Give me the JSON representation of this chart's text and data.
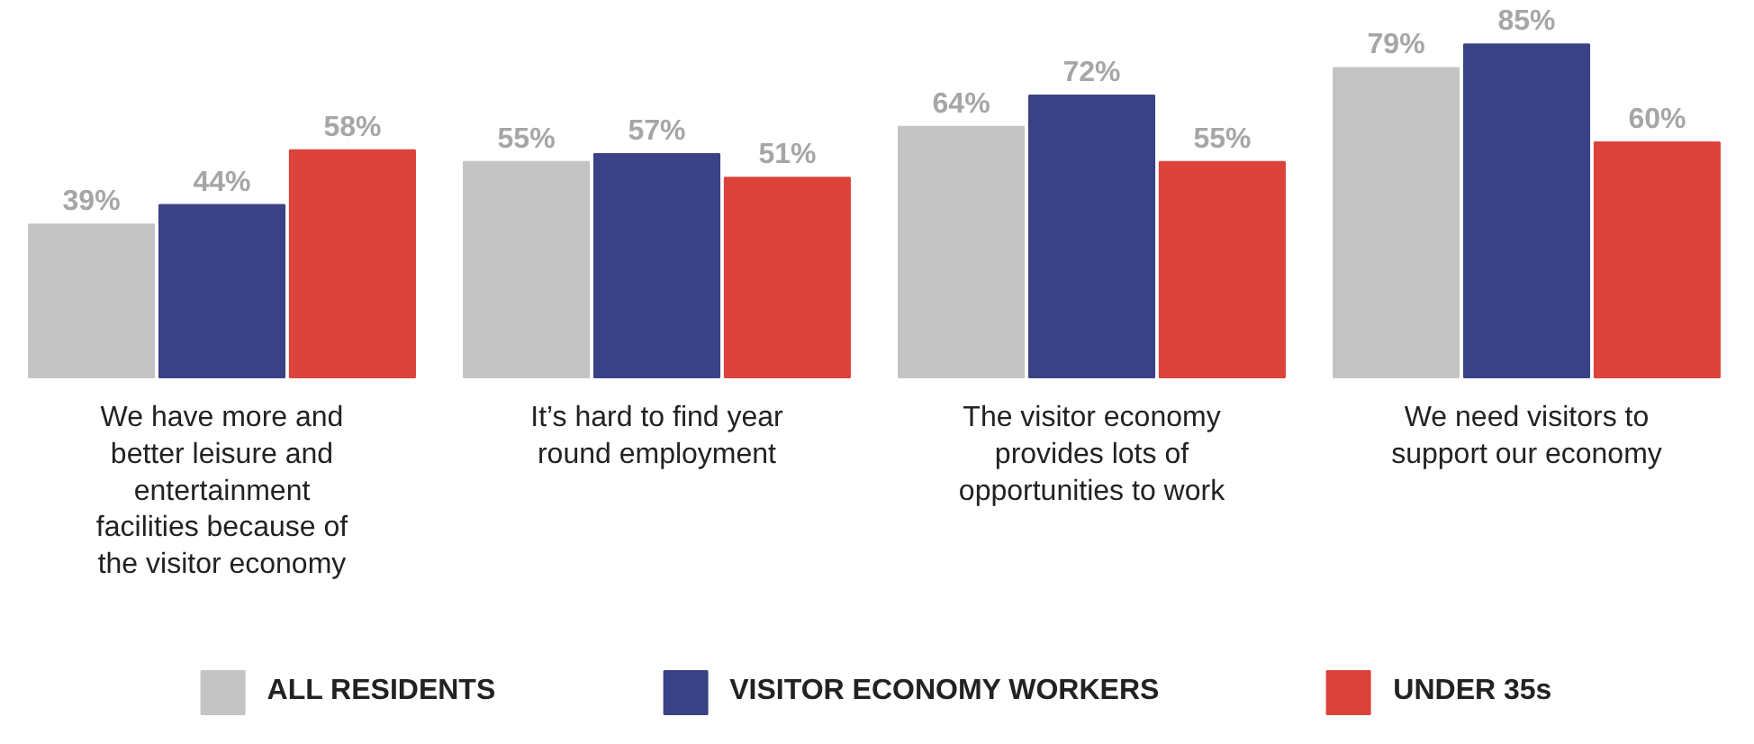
{
  "chart_data": {
    "type": "bar",
    "categories": [
      "We have more and better leisure and entertainment facilities because of the visitor economy",
      "It’s hard to find year round employment",
      "The visitor economy provides lots of opportunities to work",
      "We need visitors to support our economy"
    ],
    "series": [
      {
        "name": "ALL RESIDENTS",
        "color": "#c4c4c4",
        "values": [
          39,
          55,
          64,
          79
        ],
        "value_labels": [
          "39%",
          "55%",
          "64%",
          "79%"
        ]
      },
      {
        "name": "VISITOR ECONOMY WORKERS",
        "color": "#3a4285",
        "values": [
          44,
          57,
          72,
          85
        ],
        "value_labels": [
          "44%",
          "57%",
          "72%",
          "85%"
        ]
      },
      {
        "name": "UNDER 35s",
        "color": "#db433b",
        "values": [
          58,
          51,
          55,
          60
        ],
        "value_labels": [
          "58%",
          "51%",
          "55%",
          "60%"
        ]
      }
    ],
    "legend": "bottom",
    "grid": false
  }
}
